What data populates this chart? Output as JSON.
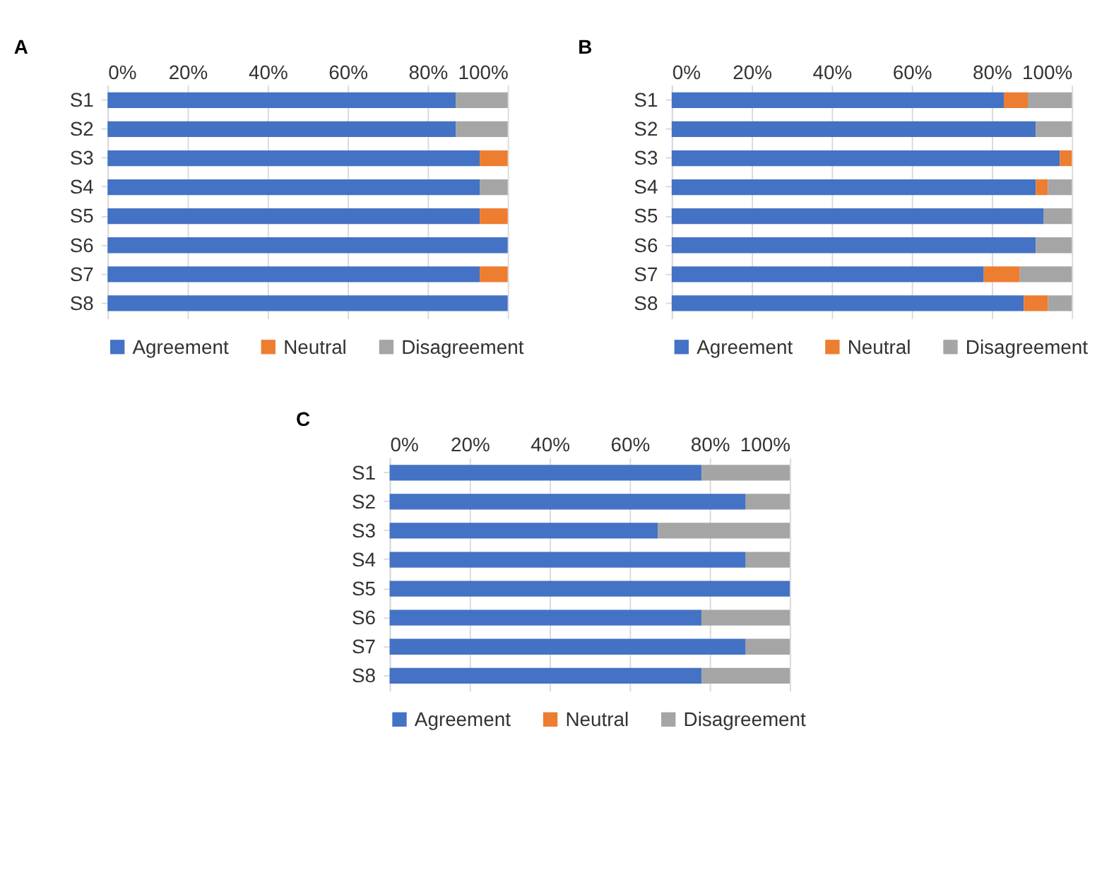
{
  "chart_data": [
    {
      "type": "bar",
      "orientation": "horizontal",
      "stacked": true,
      "title": "A",
      "categories": [
        "S1",
        "S2",
        "S3",
        "S4",
        "S5",
        "S6",
        "S7",
        "S8"
      ],
      "series": [
        {
          "name": "Agreement",
          "color": "#4472c4",
          "values": [
            87,
            87,
            93,
            93,
            93,
            100,
            93,
            100
          ]
        },
        {
          "name": "Neutral",
          "color": "#ed7d31",
          "values": [
            0,
            0,
            7,
            0,
            7,
            0,
            7,
            0
          ]
        },
        {
          "name": "Disagreement",
          "color": "#a5a5a5",
          "values": [
            13,
            13,
            0,
            7,
            0,
            0,
            0,
            0
          ]
        }
      ],
      "xlim": [
        0,
        100
      ],
      "xticks": [
        {
          "value": 0,
          "label": "0%"
        },
        {
          "value": 20,
          "label": "20%"
        },
        {
          "value": 40,
          "label": "40%"
        },
        {
          "value": 60,
          "label": "60%"
        },
        {
          "value": 80,
          "label": "80%"
        },
        {
          "value": 100,
          "label": "100%"
        }
      ],
      "grid": "x",
      "legend": "bottom"
    },
    {
      "type": "bar",
      "orientation": "horizontal",
      "stacked": true,
      "title": "B",
      "categories": [
        "S1",
        "S2",
        "S3",
        "S4",
        "S5",
        "S6",
        "S7",
        "S8"
      ],
      "series": [
        {
          "name": "Agreement",
          "color": "#4472c4",
          "values": [
            83,
            91,
            97,
            91,
            93,
            91,
            78,
            88
          ]
        },
        {
          "name": "Neutral",
          "color": "#ed7d31",
          "values": [
            6,
            0,
            3,
            3,
            0,
            0,
            9,
            6
          ]
        },
        {
          "name": "Disagreement",
          "color": "#a5a5a5",
          "values": [
            11,
            9,
            0,
            6,
            7,
            9,
            13,
            6
          ]
        }
      ],
      "xlim": [
        0,
        100
      ],
      "xticks": [
        {
          "value": 0,
          "label": "0%"
        },
        {
          "value": 20,
          "label": "20%"
        },
        {
          "value": 40,
          "label": "40%"
        },
        {
          "value": 60,
          "label": "60%"
        },
        {
          "value": 80,
          "label": "80%"
        },
        {
          "value": 100,
          "label": "100%"
        }
      ],
      "grid": "x",
      "legend": "bottom"
    },
    {
      "type": "bar",
      "orientation": "horizontal",
      "stacked": true,
      "title": "C",
      "categories": [
        "S1",
        "S2",
        "S3",
        "S4",
        "S5",
        "S6",
        "S7",
        "S8"
      ],
      "series": [
        {
          "name": "Agreement",
          "color": "#4472c4",
          "values": [
            78,
            89,
            67,
            89,
            100,
            78,
            89,
            78
          ]
        },
        {
          "name": "Neutral",
          "color": "#ed7d31",
          "values": [
            0,
            0,
            0,
            0,
            0,
            0,
            0,
            0
          ]
        },
        {
          "name": "Disagreement",
          "color": "#a5a5a5",
          "values": [
            22,
            11,
            33,
            11,
            0,
            22,
            11,
            22
          ]
        }
      ],
      "xlim": [
        0,
        100
      ],
      "xticks": [
        {
          "value": 0,
          "label": "0%"
        },
        {
          "value": 20,
          "label": "20%"
        },
        {
          "value": 40,
          "label": "40%"
        },
        {
          "value": 60,
          "label": "60%"
        },
        {
          "value": 80,
          "label": "80%"
        },
        {
          "value": 100,
          "label": "100%"
        }
      ],
      "grid": "x",
      "legend": "bottom"
    }
  ]
}
